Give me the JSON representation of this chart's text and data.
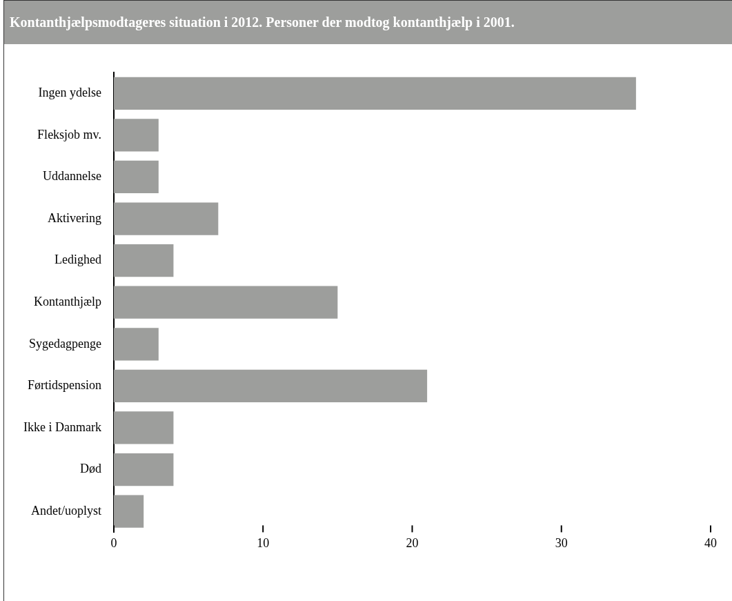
{
  "chart_data": {
    "type": "bar",
    "orientation": "horizontal",
    "title": "Kontanthjælpsmodtageres situation i 2012. Personer der modtog kontanthjælp i 2001.",
    "categories": [
      "Ingen ydelse",
      "Fleksjob mv.",
      "Uddannelse",
      "Aktivering",
      "Ledighed",
      "Kontanthjælp",
      "Sygedagpenge",
      "Førtidspension",
      "Ikke i Danmark",
      "Død",
      "Andet/uoplyst"
    ],
    "values": [
      35,
      3,
      3,
      7,
      4,
      15,
      3,
      21,
      4,
      4,
      2
    ],
    "color": "#9d9e9c",
    "xlim": [
      0,
      40
    ],
    "xticks": [
      0,
      10,
      20,
      30,
      40
    ],
    "grid": false,
    "legend": false
  }
}
